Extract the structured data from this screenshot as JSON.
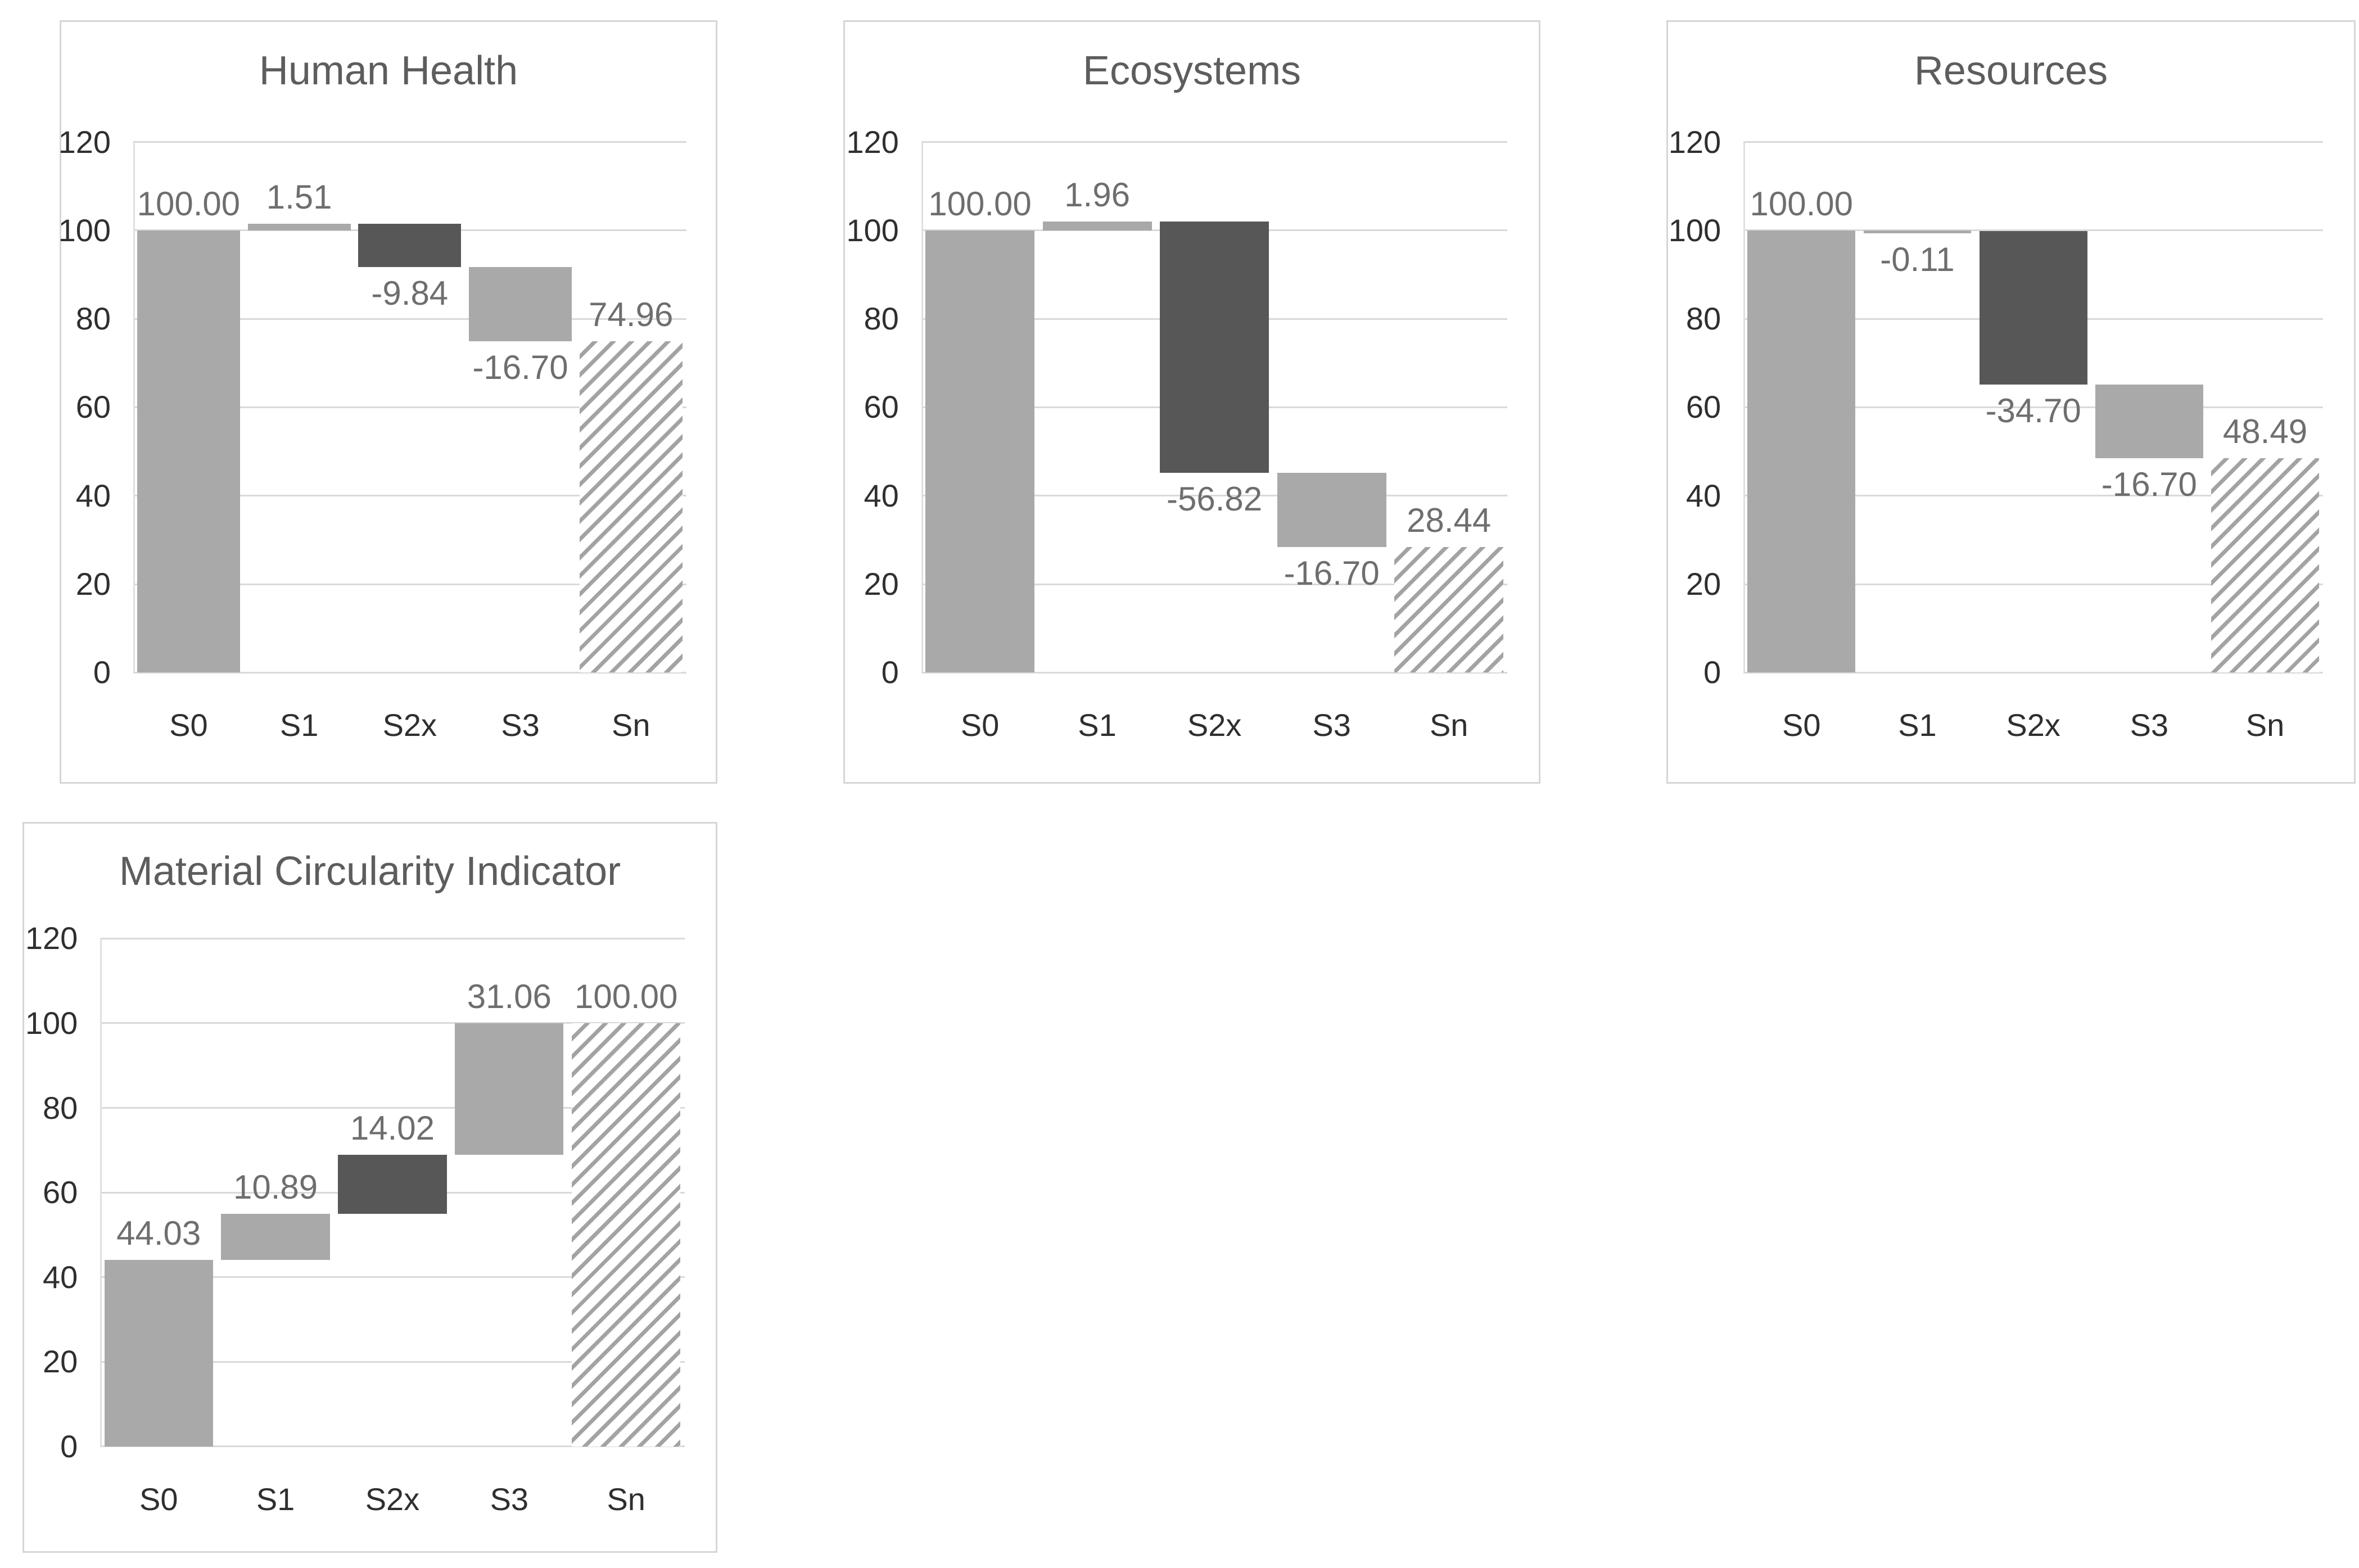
{
  "page": {
    "background": "#ffffff"
  },
  "colors": {
    "bar_gray": "#a9a9a9",
    "bar_dark": "#575757",
    "bar_hatch_line": "#a3a3a3",
    "gridline": "#d9d9d9",
    "axis_line": "#e0e0e0",
    "panel_border": "#d6d6d6",
    "title_text": "#5d5d5d",
    "tick_text": "#2f2f2f",
    "data_label_text": "#6e6e6e"
  },
  "y_axis": {
    "min": 0,
    "max": 120,
    "step": 20,
    "tick_labels": [
      "0",
      "20",
      "40",
      "60",
      "80",
      "100",
      "120"
    ]
  },
  "categories": [
    "S0",
    "S1",
    "S2x",
    "S3",
    "Sn"
  ],
  "chart_data": [
    {
      "type": "bar",
      "subtype": "waterfall",
      "title": "Human Health",
      "xlabel": "",
      "ylabel": "",
      "ylim": [
        0,
        120
      ],
      "grid": true,
      "legend": false,
      "categories": [
        "S0",
        "S1",
        "S2x",
        "S3",
        "Sn"
      ],
      "bars": [
        {
          "category": "S0",
          "kind": "total",
          "value": 100.0,
          "label": "100.00",
          "start": 0,
          "end": 100.0,
          "style": "gray",
          "label_pos": "above"
        },
        {
          "category": "S1",
          "kind": "delta",
          "value": 1.51,
          "label": "1.51",
          "start": 100.0,
          "end": 101.51,
          "style": "gray",
          "label_pos": "above"
        },
        {
          "category": "S2x",
          "kind": "delta",
          "value": -9.84,
          "label": "-9.84",
          "start": 101.51,
          "end": 91.67,
          "style": "dark",
          "label_pos": "below"
        },
        {
          "category": "S3",
          "kind": "delta",
          "value": -16.7,
          "label": "-16.70",
          "start": 91.67,
          "end": 74.97,
          "style": "gray",
          "label_pos": "below"
        },
        {
          "category": "Sn",
          "kind": "total",
          "value": 74.96,
          "label": "74.96",
          "start": 0,
          "end": 74.96,
          "style": "hatch",
          "label_pos": "above"
        }
      ]
    },
    {
      "type": "bar",
      "subtype": "waterfall",
      "title": "Ecosystems",
      "xlabel": "",
      "ylabel": "",
      "ylim": [
        0,
        120
      ],
      "grid": true,
      "legend": false,
      "categories": [
        "S0",
        "S1",
        "S2x",
        "S3",
        "Sn"
      ],
      "bars": [
        {
          "category": "S0",
          "kind": "total",
          "value": 100.0,
          "label": "100.00",
          "start": 0,
          "end": 100.0,
          "style": "gray",
          "label_pos": "above"
        },
        {
          "category": "S1",
          "kind": "delta",
          "value": 1.96,
          "label": "1.96",
          "start": 100.0,
          "end": 101.96,
          "style": "gray",
          "label_pos": "above"
        },
        {
          "category": "S2x",
          "kind": "delta",
          "value": -56.82,
          "label": "-56.82",
          "start": 101.96,
          "end": 45.14,
          "style": "dark",
          "label_pos": "below"
        },
        {
          "category": "S3",
          "kind": "delta",
          "value": -16.7,
          "label": "-16.70",
          "start": 45.14,
          "end": 28.44,
          "style": "gray",
          "label_pos": "below"
        },
        {
          "category": "Sn",
          "kind": "total",
          "value": 28.44,
          "label": "28.44",
          "start": 0,
          "end": 28.44,
          "style": "hatch",
          "label_pos": "above"
        }
      ]
    },
    {
      "type": "bar",
      "subtype": "waterfall",
      "title": "Resources",
      "xlabel": "",
      "ylabel": "",
      "ylim": [
        0,
        120
      ],
      "grid": true,
      "legend": false,
      "categories": [
        "S0",
        "S1",
        "S2x",
        "S3",
        "Sn"
      ],
      "bars": [
        {
          "category": "S0",
          "kind": "total",
          "value": 100.0,
          "label": "100.00",
          "start": 0,
          "end": 100.0,
          "style": "gray",
          "label_pos": "above"
        },
        {
          "category": "S1",
          "kind": "delta",
          "value": -0.11,
          "label": "-0.11",
          "start": 100.0,
          "end": 99.89,
          "style": "gray",
          "label_pos": "below"
        },
        {
          "category": "S2x",
          "kind": "delta",
          "value": -34.7,
          "label": "-34.70",
          "start": 99.89,
          "end": 65.19,
          "style": "dark",
          "label_pos": "below"
        },
        {
          "category": "S3",
          "kind": "delta",
          "value": -16.7,
          "label": "-16.70",
          "start": 65.19,
          "end": 48.49,
          "style": "gray",
          "label_pos": "below"
        },
        {
          "category": "Sn",
          "kind": "total",
          "value": 48.49,
          "label": "48.49",
          "start": 0,
          "end": 48.49,
          "style": "hatch",
          "label_pos": "above"
        }
      ]
    },
    {
      "type": "bar",
      "subtype": "waterfall",
      "title": "Material Circularity Indicator",
      "xlabel": "",
      "ylabel": "",
      "ylim": [
        0,
        120
      ],
      "grid": true,
      "legend": false,
      "categories": [
        "S0",
        "S1",
        "S2x",
        "S3",
        "Sn"
      ],
      "bars": [
        {
          "category": "S0",
          "kind": "total",
          "value": 44.03,
          "label": "44.03",
          "start": 0,
          "end": 44.03,
          "style": "gray",
          "label_pos": "above"
        },
        {
          "category": "S1",
          "kind": "delta",
          "value": 10.89,
          "label": "10.89",
          "start": 44.03,
          "end": 54.92,
          "style": "gray",
          "label_pos": "above"
        },
        {
          "category": "S2x",
          "kind": "delta",
          "value": 14.02,
          "label": "14.02",
          "start": 54.92,
          "end": 68.94,
          "style": "dark",
          "label_pos": "above"
        },
        {
          "category": "S3",
          "kind": "delta",
          "value": 31.06,
          "label": "31.06",
          "start": 68.94,
          "end": 100.0,
          "style": "gray",
          "label_pos": "above"
        },
        {
          "category": "Sn",
          "kind": "total",
          "value": 100.0,
          "label": "100.00",
          "start": 0,
          "end": 100.0,
          "style": "hatch",
          "label_pos": "above"
        }
      ]
    }
  ]
}
